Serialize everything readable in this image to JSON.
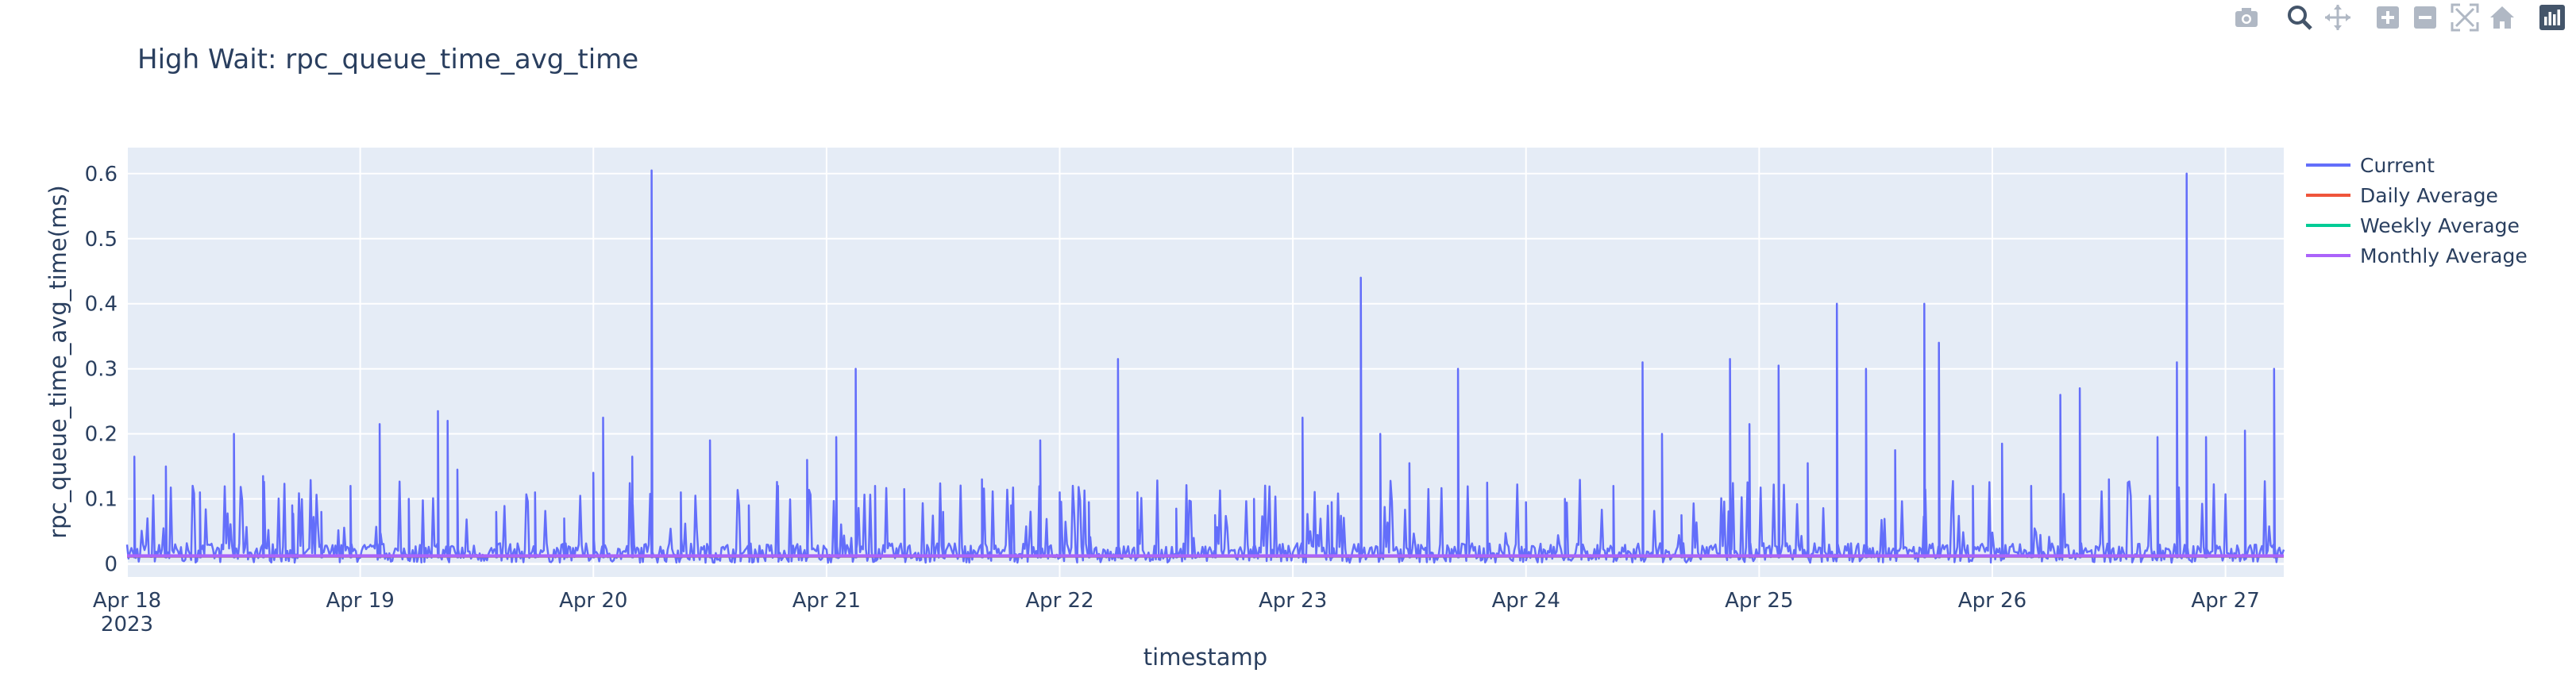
{
  "chart_data": {
    "type": "line",
    "title": "High Wait: rpc_queue_time_avg_time",
    "xlabel": "timestamp",
    "ylabel": "rpc_queue_time_avg_time(ms)",
    "xlim": [
      "2023-04-18",
      "2023-04-27 06:00"
    ],
    "ylim": [
      -0.02,
      0.64
    ],
    "yticks": [
      0,
      0.1,
      0.2,
      0.3,
      0.4,
      0.5,
      0.6
    ],
    "ytick_labels": [
      "0",
      "0.1",
      "0.2",
      "0.3",
      "0.4",
      "0.5",
      "0.6"
    ],
    "xticks": [
      "2023-04-18",
      "2023-04-19",
      "2023-04-20",
      "2023-04-21",
      "2023-04-22",
      "2023-04-23",
      "2023-04-24",
      "2023-04-25",
      "2023-04-26",
      "2023-04-27"
    ],
    "xtick_labels": [
      "Apr 18",
      "Apr 19",
      "Apr 20",
      "Apr 21",
      "Apr 22",
      "Apr 23",
      "Apr 24",
      "Apr 25",
      "Apr 26",
      "Apr 27"
    ],
    "xtick_sublabel": "2023",
    "grid": true,
    "legend_position": "right",
    "series": [
      {
        "name": "Current",
        "color": "#636efa",
        "baseline": 0.025,
        "peaks": [
          {
            "x": "2023-04-18 00:45",
            "y": 0.165
          },
          {
            "x": "2023-04-18 04:00",
            "y": 0.15
          },
          {
            "x": "2023-04-18 07:30",
            "y": 0.11
          },
          {
            "x": "2023-04-18 11:00",
            "y": 0.2
          },
          {
            "x": "2023-04-18 14:00",
            "y": 0.135
          },
          {
            "x": "2023-04-18 17:00",
            "y": 0.09
          },
          {
            "x": "2023-04-18 20:00",
            "y": 0.08
          },
          {
            "x": "2023-04-18 23:00",
            "y": 0.12
          },
          {
            "x": "2023-04-19 02:00",
            "y": 0.215
          },
          {
            "x": "2023-04-19 05:00",
            "y": 0.1
          },
          {
            "x": "2023-04-19 08:00",
            "y": 0.235
          },
          {
            "x": "2023-04-19 09:00",
            "y": 0.22
          },
          {
            "x": "2023-04-19 10:00",
            "y": 0.145
          },
          {
            "x": "2023-04-19 14:00",
            "y": 0.08
          },
          {
            "x": "2023-04-19 18:00",
            "y": 0.11
          },
          {
            "x": "2023-04-19 21:00",
            "y": 0.07
          },
          {
            "x": "2023-04-20 00:00",
            "y": 0.14
          },
          {
            "x": "2023-04-20 01:00",
            "y": 0.225
          },
          {
            "x": "2023-04-20 04:00",
            "y": 0.165
          },
          {
            "x": "2023-04-20 06:00",
            "y": 0.605
          },
          {
            "x": "2023-04-20 09:00",
            "y": 0.11
          },
          {
            "x": "2023-04-20 12:00",
            "y": 0.19
          },
          {
            "x": "2023-04-20 16:00",
            "y": 0.09
          },
          {
            "x": "2023-04-20 19:00",
            "y": 0.12
          },
          {
            "x": "2023-04-20 22:00",
            "y": 0.16
          },
          {
            "x": "2023-04-21 01:00",
            "y": 0.195
          },
          {
            "x": "2023-04-21 03:00",
            "y": 0.3
          },
          {
            "x": "2023-04-21 05:00",
            "y": 0.12
          },
          {
            "x": "2023-04-21 08:00",
            "y": 0.115
          },
          {
            "x": "2023-04-21 12:00",
            "y": 0.08
          },
          {
            "x": "2023-04-21 16:00",
            "y": 0.13
          },
          {
            "x": "2023-04-21 19:00",
            "y": 0.09
          },
          {
            "x": "2023-04-21 22:00",
            "y": 0.19
          },
          {
            "x": "2023-04-22 00:00",
            "y": 0.11
          },
          {
            "x": "2023-04-22 03:00",
            "y": 0.095
          },
          {
            "x": "2023-04-22 06:00",
            "y": 0.315
          },
          {
            "x": "2023-04-22 08:00",
            "y": 0.11
          },
          {
            "x": "2023-04-22 12:00",
            "y": 0.085
          },
          {
            "x": "2023-04-22 16:00",
            "y": 0.075
          },
          {
            "x": "2023-04-22 20:00",
            "y": 0.1
          },
          {
            "x": "2023-04-23 01:00",
            "y": 0.225
          },
          {
            "x": "2023-04-23 04:00",
            "y": 0.095
          },
          {
            "x": "2023-04-23 07:00",
            "y": 0.44
          },
          {
            "x": "2023-04-23 09:00",
            "y": 0.2
          },
          {
            "x": "2023-04-23 12:00",
            "y": 0.155
          },
          {
            "x": "2023-04-23 17:00",
            "y": 0.3
          },
          {
            "x": "2023-04-23 20:00",
            "y": 0.125
          },
          {
            "x": "2023-04-24 00:00",
            "y": 0.095
          },
          {
            "x": "2023-04-24 04:00",
            "y": 0.1
          },
          {
            "x": "2023-04-24 09:00",
            "y": 0.12
          },
          {
            "x": "2023-04-24 12:00",
            "y": 0.31
          },
          {
            "x": "2023-04-24 14:00",
            "y": 0.2
          },
          {
            "x": "2023-04-24 16:00",
            "y": 0.075
          },
          {
            "x": "2023-04-24 21:00",
            "y": 0.315
          },
          {
            "x": "2023-04-24 23:00",
            "y": 0.215
          },
          {
            "x": "2023-04-25 02:00",
            "y": 0.305
          },
          {
            "x": "2023-04-25 05:00",
            "y": 0.155
          },
          {
            "x": "2023-04-25 08:00",
            "y": 0.4
          },
          {
            "x": "2023-04-25 11:00",
            "y": 0.3
          },
          {
            "x": "2023-04-25 14:00",
            "y": 0.175
          },
          {
            "x": "2023-04-25 17:00",
            "y": 0.4
          },
          {
            "x": "2023-04-25 18:30",
            "y": 0.34
          },
          {
            "x": "2023-04-25 22:00",
            "y": 0.12
          },
          {
            "x": "2023-04-26 01:00",
            "y": 0.185
          },
          {
            "x": "2023-04-26 04:00",
            "y": 0.12
          },
          {
            "x": "2023-04-26 07:00",
            "y": 0.26
          },
          {
            "x": "2023-04-26 09:00",
            "y": 0.27
          },
          {
            "x": "2023-04-26 12:00",
            "y": 0.13
          },
          {
            "x": "2023-04-26 17:00",
            "y": 0.195
          },
          {
            "x": "2023-04-26 19:00",
            "y": 0.31
          },
          {
            "x": "2023-04-26 20:00",
            "y": 0.6
          },
          {
            "x": "2023-04-26 22:00",
            "y": 0.195
          },
          {
            "x": "2023-04-27 02:00",
            "y": 0.205
          },
          {
            "x": "2023-04-27 05:00",
            "y": 0.3
          }
        ]
      },
      {
        "name": "Daily Average",
        "color": "#ef553b",
        "y": 0.012
      },
      {
        "name": "Weekly Average",
        "color": "#00cc96",
        "y": 0.013
      },
      {
        "name": "Monthly Average",
        "color": "#ab63fa",
        "y": 0.014
      }
    ]
  },
  "modebar": {
    "icons": [
      "camera-icon",
      "zoom-icon",
      "pan-icon",
      "zoom-in-icon",
      "zoom-out-icon",
      "autoscale-icon",
      "home-icon",
      "plotly-logo-icon"
    ],
    "color": "#b0b8c4",
    "active_color": "#44556a"
  }
}
